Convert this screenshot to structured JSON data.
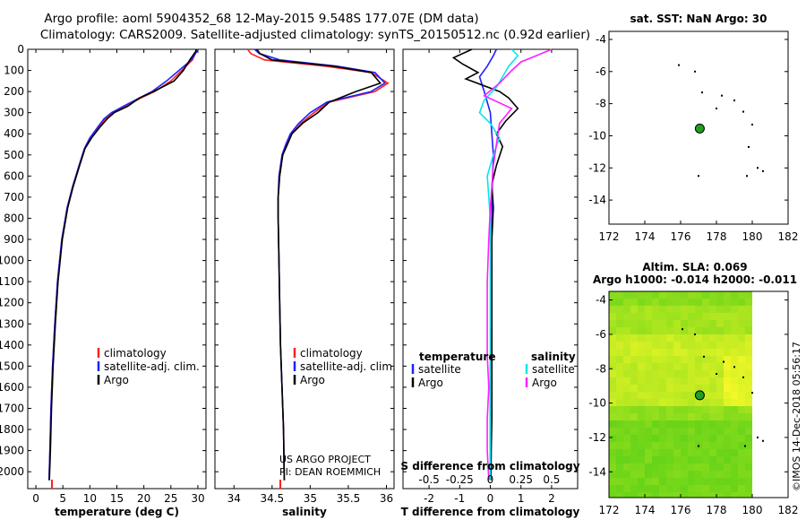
{
  "title_line1": "Argo profile: aoml 5904352_68 12-May-2015 9.548S 177.07E (DM data)",
  "title_line2": "Climatology: CARS2009. Satellite-adjusted climatology: synTS_20150512.nc (0.92d earlier)",
  "credit_line1": "US ARGO PROJECT",
  "credit_line2": "PI: DEAN ROEMMICH",
  "imos_stamp": "©IMOS 14-Dec-2018 05:56:17",
  "colors": {
    "climatology": "#ff2020",
    "satellite": "#2020ff",
    "argo": "#000000",
    "sat_salinity": "#00e8f0",
    "clim_salinity": "#ff20ff",
    "float_marker": "#20a020"
  },
  "chart_data": [
    {
      "id": "temperature",
      "type": "line",
      "xlabel": "temperature (deg C)",
      "ylabel": "",
      "xlim": [
        -1.5,
        31.5
      ],
      "ylim": [
        2080,
        0
      ],
      "xticks": [
        0,
        5,
        10,
        15,
        20,
        25,
        30
      ],
      "yticks": [
        0,
        100,
        200,
        300,
        400,
        500,
        600,
        700,
        800,
        900,
        1000,
        1100,
        1200,
        1300,
        1400,
        1500,
        1600,
        1700,
        1800,
        1900,
        2000
      ],
      "legend": [
        "climatology",
        "satellite-adj. clim.",
        "Argo"
      ],
      "series": [
        {
          "name": "climatology",
          "color": "#ff2020",
          "x": [
            29.8,
            29.7,
            29.0,
            27.0,
            25.0,
            22.0,
            19.5,
            16.5,
            14.2,
            12.8,
            11.5,
            10.0,
            9.0,
            8.0,
            6.8,
            5.8,
            4.8,
            4.0,
            3.5,
            3.1,
            2.8,
            2.6,
            2.45
          ],
          "y": [
            0,
            10,
            50,
            100,
            150,
            200,
            230,
            270,
            300,
            330,
            370,
            420,
            470,
            550,
            650,
            750,
            900,
            1100,
            1300,
            1500,
            1700,
            1900,
            2040
          ]
        },
        {
          "name": "satellite",
          "color": "#2020ff",
          "x": [
            30.0,
            29.8,
            28.8,
            26.5,
            24.2,
            21.5,
            19.2,
            16.2,
            14.0,
            12.6,
            11.4,
            10.0,
            9.0,
            8.0,
            6.8,
            5.8,
            4.8,
            4.0,
            3.5,
            3.1,
            2.8,
            2.6,
            2.45
          ],
          "y": [
            0,
            10,
            50,
            100,
            150,
            200,
            230,
            270,
            300,
            330,
            370,
            420,
            470,
            550,
            650,
            750,
            900,
            1100,
            1300,
            1500,
            1700,
            1900,
            2040
          ]
        },
        {
          "name": "Argo",
          "color": "#000000",
          "x": [
            29.7,
            29.6,
            28.5,
            27.3,
            25.6,
            21.8,
            19.2,
            17.0,
            14.5,
            13.2,
            11.8,
            10.3,
            9.1,
            8.1,
            6.9,
            5.9,
            4.9,
            4.1,
            3.6,
            3.2,
            2.9,
            2.7,
            2.5
          ],
          "y": [
            0,
            10,
            50,
            100,
            150,
            200,
            230,
            270,
            300,
            330,
            370,
            420,
            470,
            550,
            650,
            750,
            900,
            1100,
            1300,
            1500,
            1700,
            1900,
            2040
          ]
        }
      ]
    },
    {
      "id": "salinity",
      "type": "line",
      "xlabel": "salinity",
      "ylabel": "",
      "xlim": [
        33.75,
        36.1
      ],
      "ylim": [
        2080,
        0
      ],
      "xticks": [
        34,
        34.5,
        35,
        35.5,
        36
      ],
      "legend": [
        "climatology",
        "satellite-adj. clim.",
        "Argo"
      ],
      "series": [
        {
          "name": "climatology",
          "color": "#ff2020",
          "x": [
            34.18,
            34.22,
            34.4,
            35.2,
            35.8,
            36.02,
            35.85,
            35.25,
            35.05,
            34.88,
            34.76,
            34.7,
            34.64,
            34.6,
            34.58,
            34.58,
            34.59,
            34.6,
            34.61,
            34.63,
            34.65,
            34.66
          ],
          "y": [
            0,
            20,
            50,
            80,
            110,
            160,
            200,
            250,
            300,
            350,
            400,
            450,
            500,
            600,
            700,
            800,
            1000,
            1200,
            1400,
            1600,
            1800,
            2040
          ]
        },
        {
          "name": "satellite",
          "color": "#2020ff",
          "x": [
            34.27,
            34.33,
            34.6,
            35.35,
            35.85,
            35.98,
            35.8,
            35.22,
            35.0,
            34.85,
            34.74,
            34.68,
            34.63,
            34.59,
            34.58,
            34.58,
            34.59,
            34.6,
            34.61,
            34.63,
            34.65,
            34.66
          ],
          "y": [
            0,
            20,
            50,
            80,
            110,
            160,
            200,
            250,
            300,
            350,
            400,
            450,
            500,
            600,
            700,
            800,
            1000,
            1200,
            1400,
            1600,
            1800,
            2040
          ]
        },
        {
          "name": "Argo",
          "color": "#000000",
          "x": [
            34.3,
            34.34,
            34.5,
            35.3,
            35.8,
            35.92,
            35.6,
            35.25,
            35.1,
            34.9,
            34.76,
            34.7,
            34.64,
            34.6,
            34.58,
            34.58,
            34.59,
            34.6,
            34.61,
            34.63,
            34.65,
            34.66
          ],
          "y": [
            0,
            20,
            50,
            80,
            110,
            160,
            200,
            250,
            300,
            350,
            400,
            450,
            500,
            600,
            700,
            800,
            1000,
            1200,
            1400,
            1600,
            1800,
            2040
          ]
        }
      ]
    },
    {
      "id": "difference",
      "type": "line",
      "xlabel": "T difference from climatology",
      "xlabel_top": "S difference from climatology",
      "xlim": [
        -2.85,
        2.85
      ],
      "ylim": [
        2080,
        0
      ],
      "xticks": [
        -2,
        -1,
        0,
        1,
        2
      ],
      "s_tick_labels": [
        "-0.5",
        "-0.25",
        "0",
        "0.25",
        "0.5"
      ],
      "s_tick_positions": [
        -2,
        -1,
        0,
        1,
        2
      ],
      "legend_left": {
        "title": "temperature",
        "items": [
          "satellite",
          "Argo"
        ]
      },
      "legend_right": {
        "title": "salinity",
        "items": [
          "satellite",
          "Argo"
        ]
      },
      "series": [
        {
          "name": "T satellite",
          "color": "#2020ff",
          "x": [
            0.2,
            0.1,
            -0.1,
            -0.35,
            -0.2,
            -0.1,
            0.0,
            0.05,
            0.1,
            0.05,
            0.05,
            0.05,
            0.05,
            0.0,
            0.0,
            0.0,
            0.0
          ],
          "y": [
            0,
            30,
            80,
            130,
            200,
            250,
            300,
            400,
            500,
            700,
            900,
            1100,
            1300,
            1500,
            1700,
            1900,
            2040
          ]
        },
        {
          "name": "T Argo",
          "color": "#000000",
          "x": [
            -0.6,
            -1.2,
            -0.9,
            -0.4,
            -0.8,
            0.3,
            0.6,
            0.9,
            0.5,
            0.2,
            0.4,
            0.2,
            0.05,
            0.1,
            0.05,
            0.05,
            0.05,
            0.05,
            0.05,
            0.05,
            0.03,
            0.02
          ],
          "y": [
            0,
            40,
            70,
            110,
            140,
            200,
            230,
            280,
            340,
            400,
            460,
            550,
            640,
            750,
            900,
            1100,
            1300,
            1450,
            1600,
            1750,
            1900,
            2040
          ]
        },
        {
          "name": "S satellite",
          "color": "#00e8f0",
          "x": [
            0.7,
            0.9,
            0.6,
            0.4,
            0.2,
            -0.2,
            -0.35,
            0.0,
            0.3,
            0.1,
            -0.1,
            0.0,
            0.0,
            0.0,
            0.0,
            0.0,
            0.0
          ],
          "y": [
            0,
            30,
            80,
            130,
            180,
            240,
            300,
            350,
            420,
            500,
            600,
            800,
            1000,
            1300,
            1600,
            1900,
            2040
          ]
        },
        {
          "name": "S Argo",
          "color": "#ff20ff",
          "x": [
            2.0,
            1.5,
            1.0,
            0.7,
            0.3,
            -0.2,
            0.7,
            0.3,
            0.2,
            0.1,
            0.05,
            0.0,
            -0.05,
            -0.1,
            -0.1,
            -0.1,
            -0.05,
            -0.1,
            -0.1,
            -0.05
          ],
          "y": [
            0,
            30,
            60,
            100,
            160,
            220,
            280,
            350,
            450,
            550,
            650,
            750,
            900,
            1100,
            1300,
            1450,
            1600,
            1750,
            1900,
            2040
          ]
        }
      ]
    },
    {
      "id": "sst_map",
      "type": "scatter",
      "title": "sat. SST: NaN Argo: 30",
      "xlim": [
        172,
        182
      ],
      "ylim": [
        -15.5,
        -3.5
      ],
      "xticks": [
        172,
        174,
        176,
        178,
        180,
        182
      ],
      "yticks": [
        -4,
        -6,
        -8,
        -10,
        -12,
        -14
      ],
      "float_position": [
        177.07,
        -9.548
      ],
      "nearby_profiles": [
        [
          175.9,
          -5.6
        ],
        [
          176.8,
          -6.0
        ],
        [
          177.2,
          -7.3
        ],
        [
          178.3,
          -7.5
        ],
        [
          179.0,
          -7.8
        ],
        [
          178.0,
          -8.3
        ],
        [
          179.5,
          -8.5
        ],
        [
          180.0,
          -9.3
        ],
        [
          179.8,
          -10.7
        ],
        [
          180.3,
          -12.0
        ],
        [
          180.6,
          -12.2
        ],
        [
          179.7,
          -12.5
        ],
        [
          177.0,
          -12.5
        ]
      ]
    },
    {
      "id": "sla_map",
      "type": "heatmap",
      "title": "Altim. SLA: 0.069",
      "subtitle": "Argo h1000: -0.014 h2000: -0.011",
      "xlim": [
        172,
        182
      ],
      "ylim": [
        -15.5,
        -3.5
      ],
      "xticks": [
        172,
        174,
        176,
        178,
        180,
        182
      ],
      "yticks": [
        -4,
        -6,
        -8,
        -10,
        -12,
        -14
      ],
      "data_extent_x": [
        172,
        180
      ],
      "float_position": [
        177.07,
        -9.548
      ],
      "nearby_profiles": [
        [
          176.1,
          -5.7
        ],
        [
          176.8,
          -6.0
        ],
        [
          177.3,
          -7.3
        ],
        [
          178.4,
          -7.6
        ],
        [
          179.0,
          -7.9
        ],
        [
          178.0,
          -8.3
        ],
        [
          179.5,
          -8.5
        ],
        [
          180.0,
          -9.4
        ],
        [
          180.3,
          -12.0
        ],
        [
          180.6,
          -12.2
        ],
        [
          179.6,
          -12.5
        ],
        [
          177.0,
          -12.5
        ]
      ],
      "sla_bands": [
        {
          "lat": [
            -4,
            -6
          ],
          "level": 0.55
        },
        {
          "lat": [
            -6,
            -7
          ],
          "level": 0.75
        },
        {
          "lat": [
            -7,
            -10
          ],
          "level": 0.7
        },
        {
          "lat": [
            -10,
            -11
          ],
          "level": 0.45
        },
        {
          "lat": [
            -11,
            -15.5
          ],
          "level": 0.3
        }
      ]
    }
  ]
}
